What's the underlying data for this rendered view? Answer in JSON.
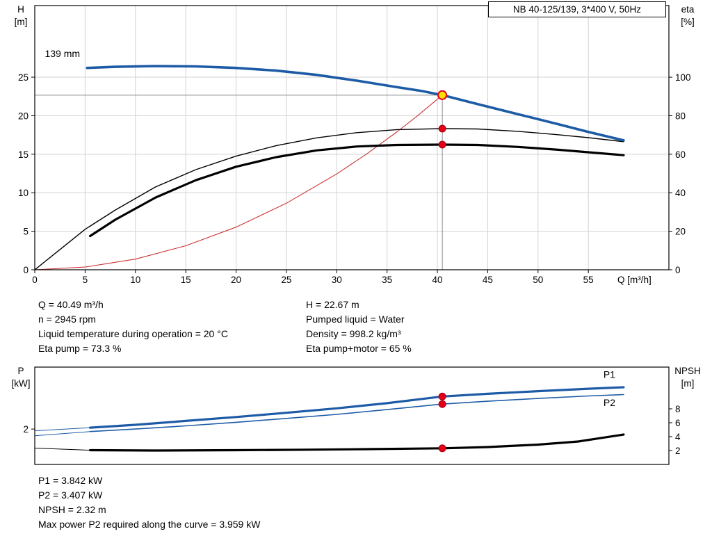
{
  "title_box": "NB 40-125/139, 3*400 V, 50Hz",
  "info_top_left": [
    "Q = 40.49 m³/h",
    "n = 2945 rpm",
    "Liquid temperature during operation = 20 °C",
    "Eta pump = 73.3 %"
  ],
  "info_top_right": [
    "H = 22.67 m",
    "Pumped liquid = Water",
    "Density = 998.2 kg/m³",
    "Eta pump+motor = 65 %"
  ],
  "info_bottom": [
    "P1 = 3.842 kW",
    "P2 = 3.407 kW",
    "NPSH = 2.32 m",
    "Max power P2 required along the curve = 3.959 kW"
  ],
  "colors": {
    "blue": "#1d5ba6",
    "black": "#000000",
    "red": "#cc3333",
    "marker_red": "#e30016",
    "marker_red_edge": "#a80010",
    "marker_yellow": "#ffe100",
    "grid": "#d2d2d2",
    "refline": "#8c8c8c"
  },
  "chart_data": [
    {
      "type": "line",
      "name": "hq-eta-chart",
      "title": "NB 40-125/139, 3*400 V, 50Hz",
      "x_label": "Q [m³/h]",
      "y_left_label": [
        "H",
        "[m]"
      ],
      "y_right_label": [
        "eta",
        "[%]"
      ],
      "x_range": [
        0,
        63
      ],
      "x_ticks": [
        0,
        5,
        10,
        15,
        20,
        25,
        30,
        35,
        40,
        45,
        50,
        55
      ],
      "y_left_range": [
        0,
        34.3
      ],
      "y_left_ticks": [
        0,
        5,
        10,
        15,
        20,
        25
      ],
      "y_right_range": [
        0,
        137.2
      ],
      "y_right_ticks": [
        0,
        20,
        40,
        60,
        80,
        100
      ],
      "grid": true,
      "duty_ref": {
        "x": 40.49,
        "y_left": 22.67
      },
      "series": [
        {
          "name": "system-curve",
          "axis": "left",
          "color_key": "red",
          "width": 1.1,
          "points": [
            [
              0,
              0
            ],
            [
              5,
              0.35
            ],
            [
              10,
              1.38
            ],
            [
              15,
              3.11
            ],
            [
              20,
              5.53
            ],
            [
              25,
              8.64
            ],
            [
              30,
              12.44
            ],
            [
              33,
              15.06
            ],
            [
              36,
              17.92
            ],
            [
              38,
              19.97
            ],
            [
              40.49,
              22.67
            ]
          ]
        },
        {
          "name": "eta-pump",
          "axis": "right",
          "color_key": "black",
          "width": 1.4,
          "points": [
            [
              0,
              0
            ],
            [
              2.5,
              10.5
            ],
            [
              5,
              21
            ],
            [
              8,
              31
            ],
            [
              12,
              43
            ],
            [
              16,
              52
            ],
            [
              20,
              59
            ],
            [
              24,
              64.5
            ],
            [
              28,
              68.5
            ],
            [
              32,
              71.2
            ],
            [
              36,
              72.8
            ],
            [
              40.49,
              73.3
            ],
            [
              44,
              73.1
            ],
            [
              48,
              71.9
            ],
            [
              52,
              70.1
            ],
            [
              55,
              68.6
            ],
            [
              58.5,
              66.5
            ]
          ]
        },
        {
          "name": "eta-pump-motor",
          "axis": "right",
          "color_key": "black",
          "width": 3.2,
          "points": [
            [
              5.5,
              17.5
            ],
            [
              8,
              26
            ],
            [
              12,
              37.5
            ],
            [
              16,
              46.5
            ],
            [
              20,
              53.5
            ],
            [
              24,
              58.5
            ],
            [
              28,
              62
            ],
            [
              32,
              64
            ],
            [
              36,
              64.8
            ],
            [
              40.49,
              65
            ],
            [
              44,
              64.8
            ],
            [
              48,
              63.8
            ],
            [
              52,
              62.3
            ],
            [
              55,
              61
            ],
            [
              58.5,
              59.5
            ]
          ]
        },
        {
          "name": "head-curve-139mm",
          "axis": "left",
          "color_key": "blue",
          "width": 3.6,
          "points": [
            [
              5.2,
              26.2
            ],
            [
              8,
              26.35
            ],
            [
              12,
              26.45
            ],
            [
              16,
              26.4
            ],
            [
              20,
              26.2
            ],
            [
              24,
              25.85
            ],
            [
              28,
              25.3
            ],
            [
              32,
              24.55
            ],
            [
              36,
              23.7
            ],
            [
              38.5,
              23.2
            ],
            [
              40.49,
              22.67
            ],
            [
              44,
              21.5
            ],
            [
              48,
              20.2
            ],
            [
              52,
              18.9
            ],
            [
              55,
              17.9
            ],
            [
              58.5,
              16.8
            ]
          ]
        }
      ],
      "markers": [
        {
          "kind": "duty",
          "axis": "left",
          "x": 40.49,
          "y": 22.67
        },
        {
          "kind": "dot",
          "axis": "right",
          "x": 40.49,
          "y": 73.3
        },
        {
          "kind": "dot",
          "axis": "right",
          "x": 40.49,
          "y": 65
        }
      ],
      "annotations": [
        {
          "text": "139 mm",
          "x": 1.0,
          "y_left": 27.6,
          "color_key": "black",
          "anchor": "start"
        }
      ]
    },
    {
      "type": "line",
      "name": "power-npsh-chart",
      "title": "",
      "x_label": "",
      "y_left_label": [
        "P",
        "[kW]"
      ],
      "y_right_label": [
        "NPSH",
        "[m]"
      ],
      "x_range": [
        0,
        63
      ],
      "x_ticks": [],
      "y_left_range": [
        0,
        5.5
      ],
      "y_left_ticks": [
        2
      ],
      "y_right_range": [
        0,
        14
      ],
      "y_right_ticks": [
        2,
        4,
        6,
        8
      ],
      "grid": false,
      "series": [
        {
          "name": "p1-leader",
          "axis": "left",
          "color_key": "blue",
          "width": 1,
          "points": [
            [
              0,
              1.9
            ],
            [
              5.5,
              2.08
            ]
          ]
        },
        {
          "name": "p2-leader",
          "axis": "left",
          "color_key": "blue",
          "width": 1,
          "points": [
            [
              0,
              1.62
            ],
            [
              5.5,
              1.86
            ]
          ]
        },
        {
          "name": "npsh-leader",
          "axis": "right",
          "color_key": "black",
          "width": 1,
          "points": [
            [
              0,
              2.35
            ],
            [
              5.5,
              2.05
            ]
          ]
        },
        {
          "name": "p2-curve",
          "axis": "left",
          "color_key": "blue",
          "width": 1.6,
          "points": [
            [
              5.5,
              1.86
            ],
            [
              10,
              2.0
            ],
            [
              15,
              2.18
            ],
            [
              20,
              2.38
            ],
            [
              25,
              2.6
            ],
            [
              30,
              2.83
            ],
            [
              35,
              3.1
            ],
            [
              40.49,
              3.41
            ],
            [
              45,
              3.57
            ],
            [
              50,
              3.73
            ],
            [
              55,
              3.87
            ],
            [
              58.5,
              3.95
            ]
          ]
        },
        {
          "name": "p1-curve",
          "axis": "left",
          "color_key": "blue",
          "width": 3.2,
          "points": [
            [
              5.5,
              2.08
            ],
            [
              10,
              2.24
            ],
            [
              15,
              2.46
            ],
            [
              20,
              2.68
            ],
            [
              25,
              2.92
            ],
            [
              30,
              3.17
            ],
            [
              35,
              3.46
            ],
            [
              40.49,
              3.84
            ],
            [
              45,
              3.99
            ],
            [
              50,
              4.14
            ],
            [
              55,
              4.28
            ],
            [
              58.5,
              4.36
            ]
          ]
        },
        {
          "name": "npsh-curve",
          "axis": "right",
          "color_key": "black",
          "width": 3.2,
          "points": [
            [
              5.5,
              2.05
            ],
            [
              12,
              2.0
            ],
            [
              20,
              2.05
            ],
            [
              27,
              2.12
            ],
            [
              33,
              2.2
            ],
            [
              38,
              2.28
            ],
            [
              40.49,
              2.32
            ],
            [
              45,
              2.5
            ],
            [
              50,
              2.85
            ],
            [
              54,
              3.3
            ],
            [
              58.5,
              4.3
            ]
          ]
        }
      ],
      "markers": [
        {
          "kind": "dot",
          "axis": "left",
          "x": 40.49,
          "y": 3.84
        },
        {
          "kind": "dot",
          "axis": "left",
          "x": 40.49,
          "y": 3.41
        },
        {
          "kind": "dot",
          "axis": "right",
          "x": 40.49,
          "y": 2.32
        }
      ],
      "annotations": [
        {
          "text": "P1",
          "x": 56.5,
          "y_left": 4.9,
          "color_key": "blue",
          "anchor": "start"
        },
        {
          "text": "P2",
          "x": 56.5,
          "y_left": 3.3,
          "color_key": "blue",
          "anchor": "start"
        }
      ]
    }
  ]
}
